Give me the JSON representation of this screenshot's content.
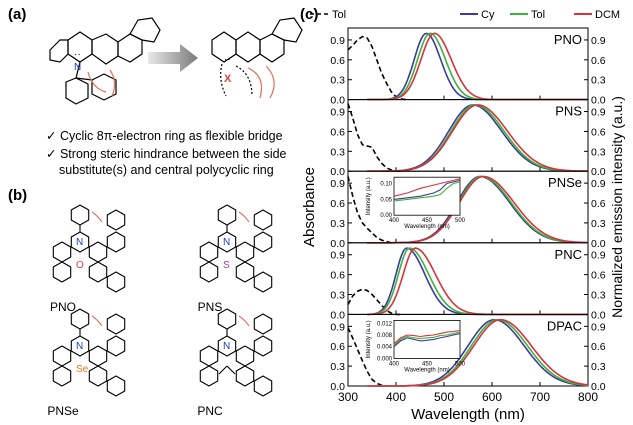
{
  "panel_a": {
    "label": "(a)",
    "bullets": [
      "Cyclic 8π-electron ring as flexible bridge",
      "Strong steric hindrance between the side",
      "substitute(s) and central polycyclic ring"
    ],
    "check_glyph": "✓",
    "atom_N": "N",
    "atom_X": "X"
  },
  "panel_b": {
    "label": "(b)",
    "structures": [
      {
        "name": "PNO",
        "heteroatom": "O",
        "color": "#e0403a"
      },
      {
        "name": "PNS",
        "heteroatom": "S",
        "color": "#9b3fa6"
      },
      {
        "name": "PNSe",
        "heteroatom": "Se",
        "color": "#e6761e"
      },
      {
        "name": "PNC",
        "heteroatom": "",
        "color": "#000000"
      }
    ],
    "atom_N": "N"
  },
  "panel_c": {
    "label": "(c)"
  },
  "chart_data": {
    "type": "line",
    "xlabel": "Wavelength (nm)",
    "ylabel_left": "Absorbance",
    "ylabel_right": "Normalized emission intensity (a.u.)",
    "xlim": [
      300,
      800
    ],
    "x_ticks": [
      "300",
      "400",
      "500",
      "600",
      "700",
      "800"
    ],
    "ylim": [
      0,
      1.05
    ],
    "y_ticks": [
      "0.0",
      "0.3",
      "0.6",
      "0.9"
    ],
    "legend": {
      "abs_entry": "Tol",
      "entries": [
        {
          "name": "Cy",
          "color": "#3c3c9a"
        },
        {
          "name": "Tol",
          "color": "#3cb43c"
        },
        {
          "name": "DCM",
          "color": "#d8323c"
        }
      ]
    },
    "colors": {
      "Cy": "#3c3c9a",
      "Tol": "#3cb43c",
      "DCM": "#d8323c",
      "abs": "#000000"
    },
    "panels": [
      {
        "name": "PNO",
        "absorbance_Tol": {
          "x": [
            300,
            310,
            320,
            330,
            340,
            350,
            360,
            370,
            380,
            390,
            400,
            410,
            420
          ],
          "y": [
            0.75,
            0.82,
            0.9,
            0.95,
            0.93,
            0.8,
            0.6,
            0.4,
            0.25,
            0.12,
            0.04,
            0.01,
            0.0
          ]
        },
        "emission": {
          "Cy": {
            "peak": 463,
            "sigma_left": 25,
            "sigma_right": 30
          },
          "Tol": {
            "peak": 471,
            "sigma_left": 26,
            "sigma_right": 32
          },
          "DCM": {
            "peak": 480,
            "sigma_left": 28,
            "sigma_right": 35
          }
        }
      },
      {
        "name": "PNS",
        "absorbance_Tol": {
          "x": [
            300,
            310,
            320,
            330,
            340,
            350,
            360,
            370,
            380,
            390,
            400,
            410
          ],
          "y": [
            1.02,
            0.8,
            0.55,
            0.4,
            0.38,
            0.36,
            0.22,
            0.12,
            0.05,
            0.02,
            0.0,
            0.0
          ]
        },
        "emission": {
          "Cy": {
            "peak": 560,
            "sigma_left": 50,
            "sigma_right": 60
          },
          "Tol": {
            "peak": 565,
            "sigma_left": 50,
            "sigma_right": 60
          },
          "DCM": {
            "peak": 570,
            "sigma_left": 52,
            "sigma_right": 62
          }
        }
      },
      {
        "name": "PNSe",
        "absorbance_Tol": {
          "x": [
            300,
            310,
            320,
            330,
            340,
            350,
            360,
            370,
            380,
            390,
            400
          ],
          "y": [
            1.0,
            0.7,
            0.45,
            0.3,
            0.22,
            0.15,
            0.08,
            0.04,
            0.02,
            0.0,
            0.0
          ]
        },
        "emission": {
          "Cy": {
            "peak": 575,
            "sigma_left": 48,
            "sigma_right": 62
          },
          "Tol": {
            "peak": 578,
            "sigma_left": 48,
            "sigma_right": 62
          },
          "DCM": {
            "peak": 582,
            "sigma_left": 50,
            "sigma_right": 64
          }
        },
        "inset": {
          "xlim": [
            400,
            500
          ],
          "ylim": [
            0,
            0.12
          ],
          "x_ticks": [
            "400",
            "450",
            "500"
          ],
          "y_ticks": [
            "0.00",
            "0.05",
            "0.10"
          ],
          "xlabel": "Wavelength (nm)",
          "ylabel": "Intensity (a.u.)",
          "Cy": {
            "x": [
              400,
              420,
              440,
              460,
              470,
              480,
              490,
              500
            ],
            "y": [
              0.05,
              0.055,
              0.06,
              0.07,
              0.08,
              0.1,
              0.105,
              0.11
            ]
          },
          "Tol": {
            "x": [
              400,
              420,
              440,
              460,
              470,
              480,
              490,
              500
            ],
            "y": [
              0.045,
              0.05,
              0.055,
              0.06,
              0.065,
              0.085,
              0.1,
              0.105
            ]
          },
          "DCM": {
            "x": [
              400,
              420,
              440,
              460,
              470,
              480,
              490,
              500
            ],
            "y": [
              0.06,
              0.07,
              0.085,
              0.095,
              0.1,
              0.105,
              0.11,
              0.115
            ]
          }
        }
      },
      {
        "name": "PNC",
        "absorbance_Tol": {
          "x": [
            300,
            310,
            320,
            330,
            340,
            350,
            360,
            370,
            380,
            390,
            400,
            410
          ],
          "y": [
            0.15,
            0.28,
            0.35,
            0.38,
            0.36,
            0.3,
            0.22,
            0.14,
            0.06,
            0.02,
            0.0,
            0.0
          ]
        },
        "emission": {
          "Cy": {
            "peak": 422,
            "sigma_left": 22,
            "sigma_right": 38
          },
          "Tol": {
            "peak": 428,
            "sigma_left": 23,
            "sigma_right": 40
          },
          "DCM": {
            "peak": 440,
            "sigma_left": 25,
            "sigma_right": 42
          }
        }
      },
      {
        "name": "DPAC",
        "absorbance_Tol": {
          "x": [
            300,
            310,
            320,
            330,
            340,
            350,
            360,
            370,
            380
          ],
          "y": [
            0.88,
            0.72,
            0.55,
            0.38,
            0.22,
            0.1,
            0.04,
            0.01,
            0.0
          ]
        },
        "emission": {
          "Cy": {
            "peak": 605,
            "sigma_left": 55,
            "sigma_right": 62
          },
          "Tol": {
            "peak": 612,
            "sigma_left": 55,
            "sigma_right": 62
          },
          "DCM": {
            "peak": 618,
            "sigma_left": 56,
            "sigma_right": 64
          }
        },
        "inset": {
          "xlim": [
            400,
            500
          ],
          "ylim": [
            0,
            0.013
          ],
          "x_ticks": [
            "400",
            "450",
            "500"
          ],
          "y_ticks": [
            "0.000",
            "0.004",
            "0.008",
            "0.012"
          ],
          "xlabel": "Wavelength (nm)",
          "ylabel": "Intensity (a.u.)",
          "Cy": {
            "x": [
              400,
              410,
              420,
              430,
              440,
              450,
              460,
              470,
              480,
              490,
              500
            ],
            "y": [
              0.004,
              0.006,
              0.007,
              0.0065,
              0.006,
              0.0062,
              0.0065,
              0.007,
              0.0075,
              0.008,
              0.0085
            ]
          },
          "Tol": {
            "x": [
              400,
              410,
              420,
              430,
              440,
              450,
              460,
              470,
              480,
              490,
              500
            ],
            "y": [
              0.0045,
              0.0065,
              0.0075,
              0.007,
              0.0068,
              0.007,
              0.0072,
              0.0078,
              0.008,
              0.0085,
              0.009
            ]
          },
          "DCM": {
            "x": [
              400,
              410,
              420,
              430,
              440,
              450,
              460,
              470,
              480,
              490,
              500
            ],
            "y": [
              0.005,
              0.007,
              0.008,
              0.0078,
              0.0075,
              0.0078,
              0.008,
              0.0085,
              0.009,
              0.0092,
              0.0095
            ]
          }
        }
      }
    ]
  }
}
